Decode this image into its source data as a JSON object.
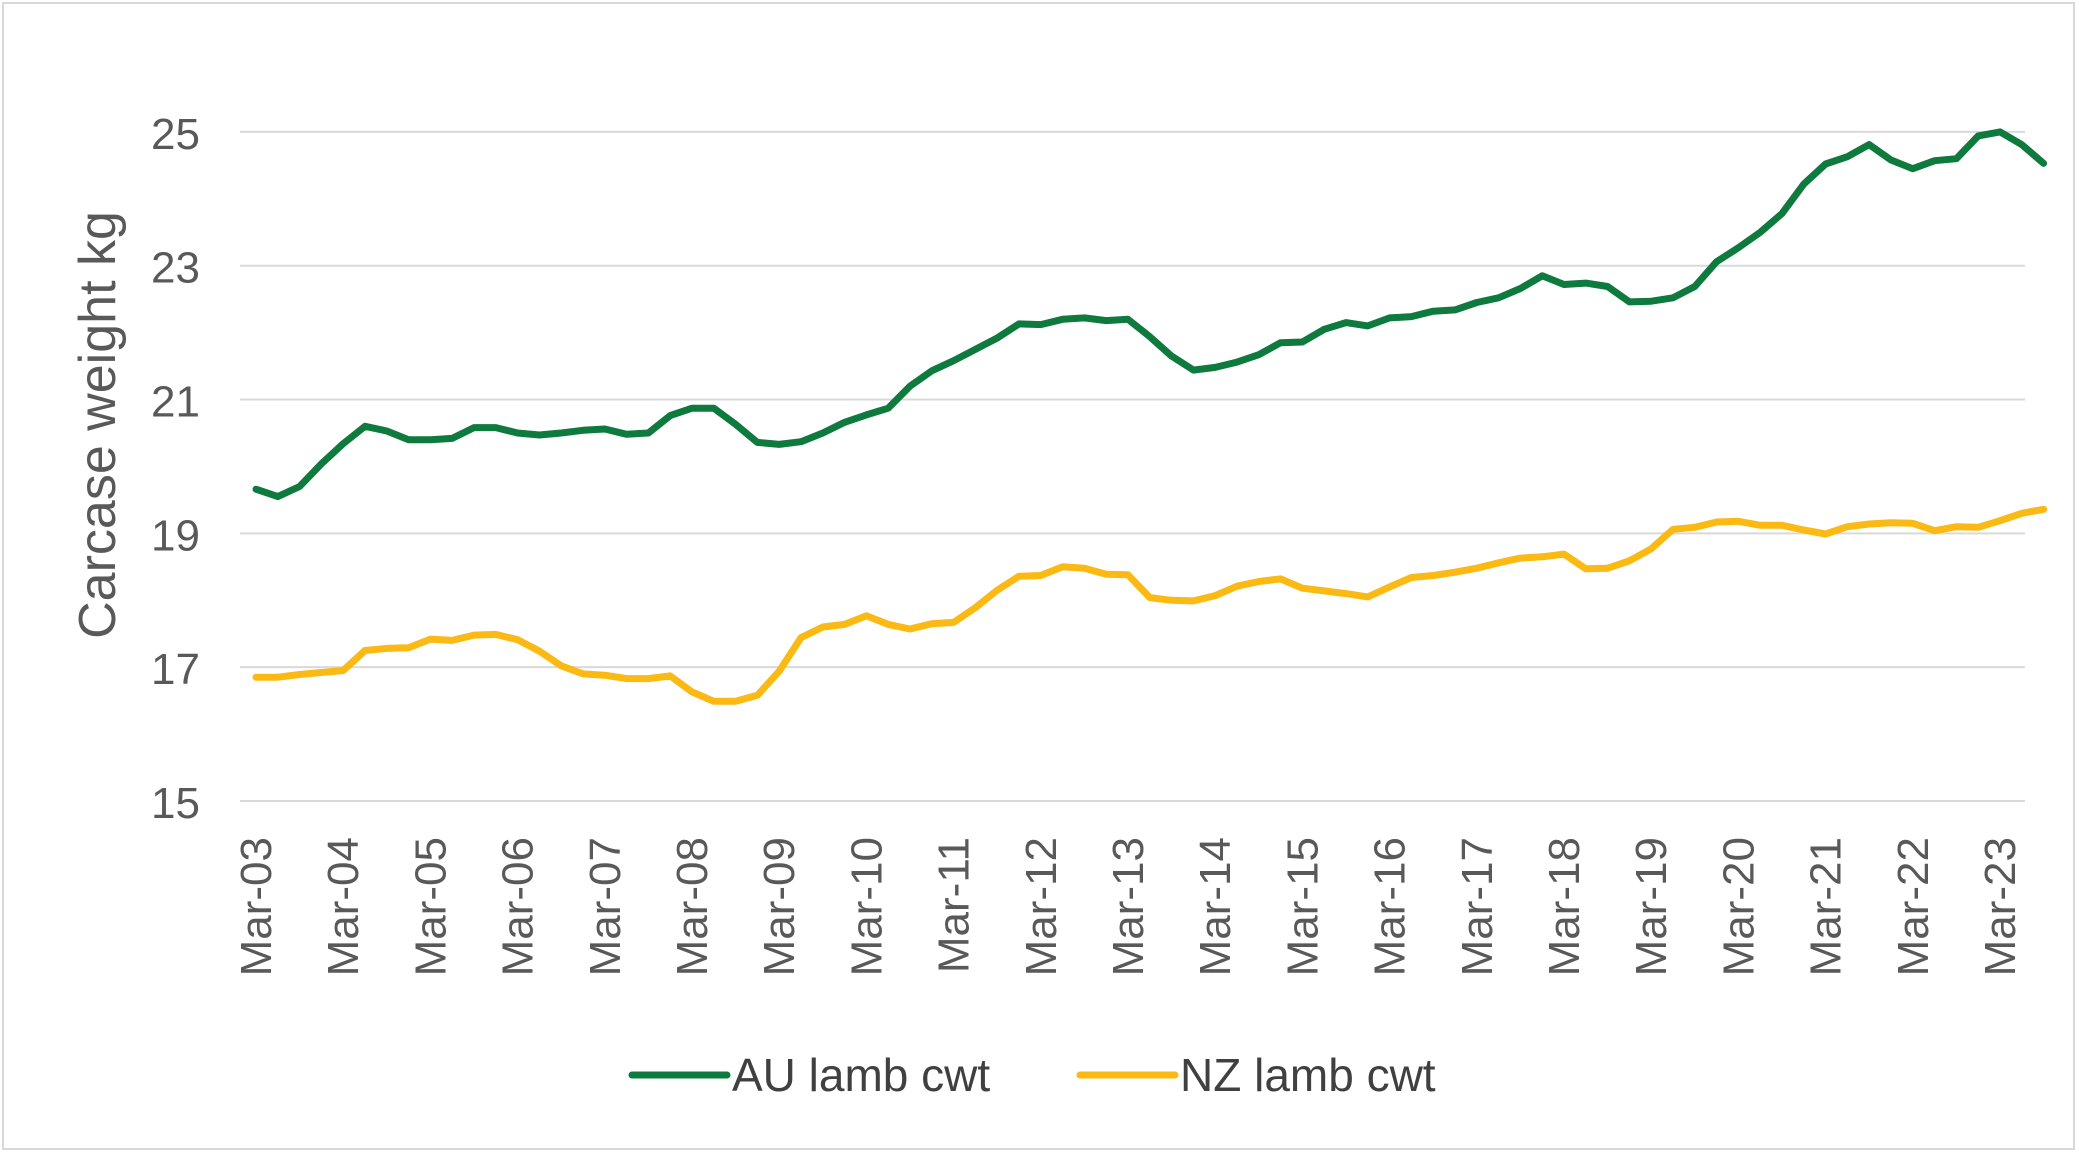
{
  "chart_data": {
    "type": "line",
    "ylabel": "Carcase weight kg",
    "ylim": [
      15,
      26
    ],
    "yticks": [
      15,
      17,
      19,
      21,
      23,
      25
    ],
    "grid": true,
    "legend_position": "bottom",
    "x_start": "Mar-03",
    "x_step": "quarter",
    "x_tick_labels": [
      "Mar-03",
      "Mar-04",
      "Mar-05",
      "Mar-06",
      "Mar-07",
      "Mar-08",
      "Mar-09",
      "Mar-10",
      "Mar-11",
      "Mar-12",
      "Mar-13",
      "Mar-14",
      "Mar-15",
      "Mar-16",
      "Mar-17",
      "Mar-18",
      "Mar-19",
      "Mar-20",
      "Mar-21",
      "Mar-22",
      "Mar-23"
    ],
    "series": [
      {
        "name": "AU lamb cwt",
        "color": "#0e7a3d",
        "values": [
          19.66,
          19.55,
          19.7,
          20.04,
          20.34,
          20.6,
          20.53,
          20.4,
          20.4,
          20.42,
          20.58,
          20.58,
          20.5,
          20.47,
          20.5,
          20.54,
          20.56,
          20.48,
          20.5,
          20.76,
          20.87,
          20.87,
          20.63,
          20.36,
          20.33,
          20.37,
          20.5,
          20.66,
          20.77,
          20.87,
          21.2,
          21.43,
          21.58,
          21.75,
          21.92,
          22.13,
          22.12,
          22.2,
          22.22,
          22.18,
          22.2,
          21.94,
          21.65,
          21.44,
          21.48,
          21.56,
          21.67,
          21.85,
          21.86,
          22.05,
          22.15,
          22.1,
          22.22,
          22.24,
          22.32,
          22.34,
          22.45,
          22.52,
          22.66,
          22.85,
          22.72,
          22.74,
          22.69,
          22.46,
          22.47,
          22.52,
          22.69,
          23.06,
          23.27,
          23.5,
          23.78,
          24.22,
          24.52,
          24.63,
          24.81,
          24.58,
          24.45,
          24.57,
          24.6,
          24.94,
          25.0,
          24.81,
          24.53
        ]
      },
      {
        "name": "NZ lamb cwt",
        "color": "#fbb913",
        "values": [
          16.85,
          16.85,
          16.89,
          16.92,
          16.95,
          17.25,
          17.28,
          17.29,
          17.42,
          17.4,
          17.48,
          17.49,
          17.41,
          17.24,
          17.02,
          16.9,
          16.88,
          16.83,
          16.83,
          16.87,
          16.63,
          16.49,
          16.49,
          16.58,
          16.94,
          17.44,
          17.6,
          17.64,
          17.77,
          17.64,
          17.57,
          17.65,
          17.67,
          17.89,
          18.15,
          18.36,
          18.37,
          18.5,
          18.48,
          18.39,
          18.38,
          18.04,
          18.0,
          17.99,
          18.07,
          18.21,
          18.28,
          18.32,
          18.18,
          18.14,
          18.1,
          18.05,
          18.2,
          18.34,
          18.37,
          18.42,
          18.48,
          18.56,
          18.63,
          18.65,
          18.69,
          18.47,
          18.48,
          18.59,
          18.77,
          19.06,
          19.09,
          19.17,
          19.18,
          19.12,
          19.12,
          19.05,
          18.99,
          19.1,
          19.14,
          19.16,
          19.15,
          19.04,
          19.1,
          19.09,
          19.19,
          19.3,
          19.36
        ]
      }
    ]
  }
}
